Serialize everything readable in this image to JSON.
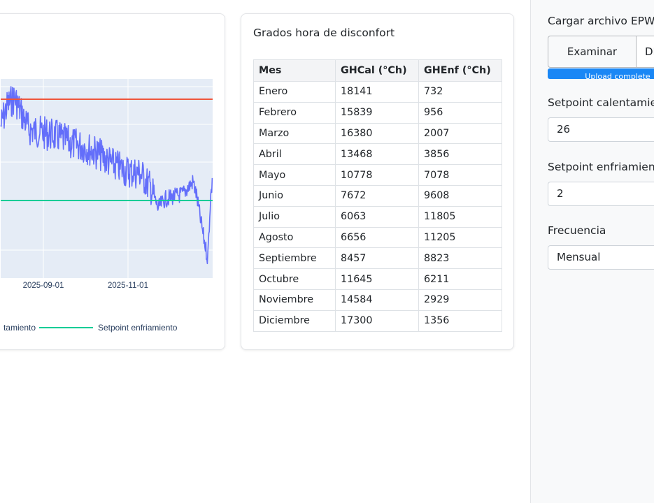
{
  "chart": {
    "x_ticks": [
      "2025-09-01",
      "2025-11-01"
    ],
    "legend": [
      {
        "label": "tamiento",
        "color": "#ef553b"
      },
      {
        "label": "Setpoint enfriamiento",
        "color": "#00cc96"
      }
    ],
    "colors": {
      "series": "#636efa",
      "heating": "#ef553b",
      "cooling": "#00cc96",
      "plot_bg": "#e5ecf6"
    }
  },
  "table_card": {
    "title": "Grados hora de disconfort",
    "headers": [
      "Mes",
      "GHCal (°Ch)",
      "GHEnf (°Ch)"
    ],
    "rows": [
      [
        "Enero",
        "18141",
        "732"
      ],
      [
        "Febrero",
        "15839",
        "956"
      ],
      [
        "Marzo",
        "16380",
        "2007"
      ],
      [
        "Abril",
        "13468",
        "3856"
      ],
      [
        "Mayo",
        "10778",
        "7078"
      ],
      [
        "Junio",
        "7672",
        "9608"
      ],
      [
        "Julio",
        "6063",
        "11805"
      ],
      [
        "Agosto",
        "6656",
        "11205"
      ],
      [
        "Septiembre",
        "8457",
        "8823"
      ],
      [
        "Octubre",
        "11645",
        "6211"
      ],
      [
        "Noviembre",
        "14584",
        "2929"
      ],
      [
        "Diciembre",
        "17300",
        "1356"
      ]
    ]
  },
  "sidebar": {
    "upload_label": "Cargar archivo EPW",
    "browse_button": "Examinar",
    "file_name": "DM",
    "upload_status": "Upload complete",
    "upload_progress": 1.0,
    "heating_label": "Setpoint calentamien",
    "heating_value": "26",
    "cooling_label": "Setpoint enfriamiento",
    "cooling_value": "2",
    "frequency_label": "Frecuencia",
    "frequency_value": "Mensual"
  }
}
